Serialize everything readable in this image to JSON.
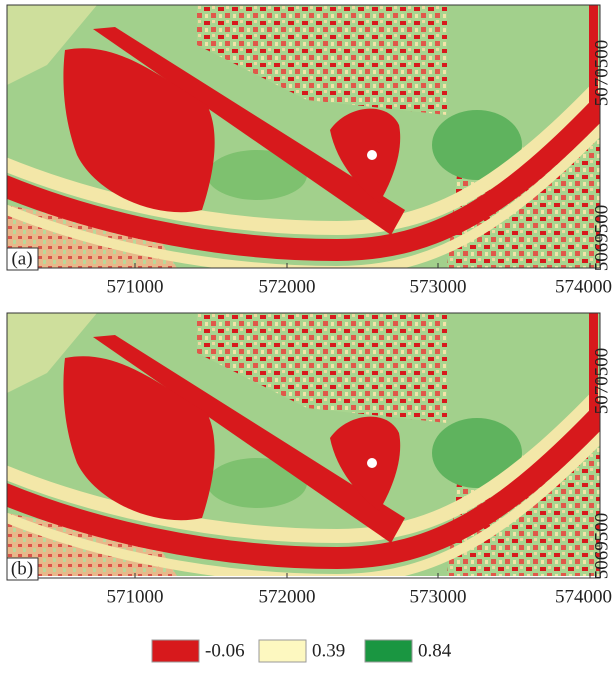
{
  "panels": [
    {
      "label": "(a)",
      "xticks": [
        571000,
        572000,
        573000,
        574000
      ],
      "yticks": [
        5070500,
        5069500
      ]
    },
    {
      "label": "(b)",
      "xticks": [
        571000,
        572000,
        573000,
        574000
      ],
      "yticks": [
        5070500,
        5069500
      ]
    }
  ],
  "legend": [
    {
      "label": "-0.06",
      "color": "#d7191c"
    },
    {
      "label": "0.39",
      "color": "#fdf8c0"
    },
    {
      "label": "0.84",
      "color": "#1a9641"
    }
  ]
}
